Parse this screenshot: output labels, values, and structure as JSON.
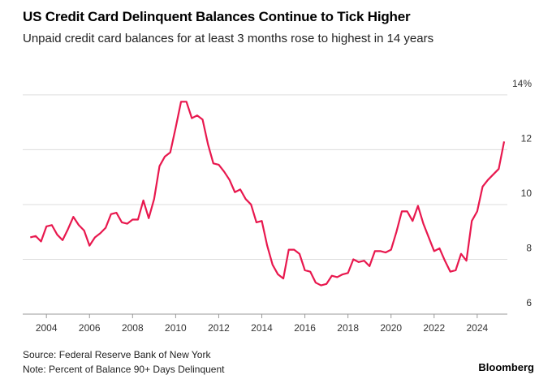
{
  "chart_data": {
    "type": "line",
    "title": "US Credit Card Delinquent Balances Continue to Tick Higher",
    "subtitle": "Unpaid credit card balances for at least 3 months rose to highest in 14 years",
    "source": "Source: Federal Reserve Bank of New York",
    "note": "Note: Percent of Balance 90+ Days Delinquent",
    "brand": "Bloomberg",
    "x": [
      2003.25,
      2003.5,
      2003.75,
      2004.0,
      2004.25,
      2004.5,
      2004.75,
      2005.0,
      2005.25,
      2005.5,
      2005.75,
      2006.0,
      2006.25,
      2006.5,
      2006.75,
      2007.0,
      2007.25,
      2007.5,
      2007.75,
      2008.0,
      2008.25,
      2008.5,
      2008.75,
      2009.0,
      2009.25,
      2009.5,
      2009.75,
      2010.0,
      2010.25,
      2010.5,
      2010.75,
      2011.0,
      2011.25,
      2011.5,
      2011.75,
      2012.0,
      2012.25,
      2012.5,
      2012.75,
      2013.0,
      2013.25,
      2013.5,
      2013.75,
      2014.0,
      2014.25,
      2014.5,
      2014.75,
      2015.0,
      2015.25,
      2015.5,
      2015.75,
      2016.0,
      2016.25,
      2016.5,
      2016.75,
      2017.0,
      2017.25,
      2017.5,
      2017.75,
      2018.0,
      2018.25,
      2018.5,
      2018.75,
      2019.0,
      2019.25,
      2019.5,
      2019.75,
      2020.0,
      2020.25,
      2020.5,
      2020.75,
      2021.0,
      2021.25,
      2021.5,
      2021.75,
      2022.0,
      2022.25,
      2022.5,
      2022.75,
      2023.0,
      2023.25,
      2023.5,
      2023.75,
      2024.0,
      2024.25,
      2024.5,
      2024.75,
      2025.0,
      2025.25
    ],
    "series": [
      {
        "name": "Percent of Balance 90+ Days Delinquent",
        "color": "#e8184e",
        "values": [
          8.8,
          8.85,
          8.65,
          9.2,
          9.25,
          8.9,
          8.7,
          9.1,
          9.55,
          9.25,
          9.05,
          8.5,
          8.8,
          8.95,
          9.15,
          9.65,
          9.7,
          9.35,
          9.3,
          9.45,
          9.45,
          10.15,
          9.5,
          10.2,
          11.4,
          11.75,
          11.9,
          12.8,
          13.75,
          13.75,
          13.15,
          13.25,
          13.1,
          12.2,
          11.5,
          11.45,
          11.2,
          10.9,
          10.45,
          10.55,
          10.2,
          10.0,
          9.35,
          9.4,
          8.5,
          7.8,
          7.45,
          7.3,
          8.35,
          8.35,
          8.2,
          7.6,
          7.55,
          7.15,
          7.05,
          7.1,
          7.4,
          7.35,
          7.45,
          7.5,
          8.0,
          7.9,
          7.95,
          7.75,
          8.3,
          8.3,
          8.25,
          8.35,
          9.0,
          9.75,
          9.75,
          9.4,
          9.95,
          9.3,
          8.8,
          8.3,
          8.4,
          7.95,
          7.55,
          7.6,
          8.2,
          7.95,
          9.4,
          9.75,
          10.65,
          10.9,
          11.1,
          11.3,
          12.3
        ]
      }
    ],
    "xlim": [
      2002.9,
      2025.4
    ],
    "xticks": [
      2004,
      2006,
      2008,
      2010,
      2012,
      2014,
      2016,
      2018,
      2020,
      2022,
      2024
    ],
    "ylim": [
      6,
      14.5
    ],
    "yticks": [
      6,
      8,
      10,
      12,
      {
        "value": 14,
        "label": "14%"
      }
    ],
    "grid": true
  }
}
